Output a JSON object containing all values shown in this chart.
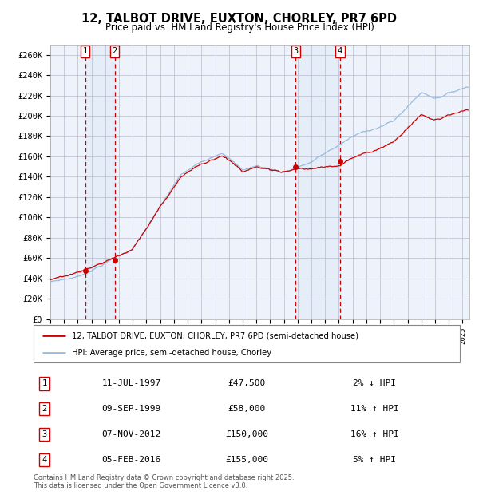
{
  "title_line1": "12, TALBOT DRIVE, EUXTON, CHORLEY, PR7 6PD",
  "title_line2": "Price paid vs. HM Land Registry's House Price Index (HPI)",
  "legend_line1": "12, TALBOT DRIVE, EUXTON, CHORLEY, PR7 6PD (semi-detached house)",
  "legend_line2": "HPI: Average price, semi-detached house, Chorley",
  "price_color": "#cc0000",
  "hpi_color": "#99bbdd",
  "background_color": "#eef2fb",
  "grid_color": "#bbbbcc",
  "ylim": [
    0,
    270000
  ],
  "yticks": [
    0,
    20000,
    40000,
    60000,
    80000,
    100000,
    120000,
    140000,
    160000,
    180000,
    200000,
    220000,
    240000,
    260000
  ],
  "ytick_labels": [
    "£0",
    "£20K",
    "£40K",
    "£60K",
    "£80K",
    "£100K",
    "£120K",
    "£140K",
    "£160K",
    "£180K",
    "£200K",
    "£220K",
    "£240K",
    "£260K"
  ],
  "sales": [
    {
      "num": 1,
      "date": "11-JUL-1997",
      "price": 47500,
      "year": 1997.53,
      "pct": "2%",
      "dir": "↓"
    },
    {
      "num": 2,
      "date": "09-SEP-1999",
      "price": 58000,
      "year": 1999.69,
      "pct": "11%",
      "dir": "↑"
    },
    {
      "num": 3,
      "date": "07-NOV-2012",
      "price": 150000,
      "year": 2012.85,
      "pct": "16%",
      "dir": "↑"
    },
    {
      "num": 4,
      "date": "05-FEB-2016",
      "price": 155000,
      "year": 2016.09,
      "pct": "5%",
      "dir": "↑"
    }
  ],
  "footer": "Contains HM Land Registry data © Crown copyright and database right 2025.\nThis data is licensed under the Open Government Licence v3.0.",
  "xlim_start": 1995.0,
  "xlim_end": 2025.5
}
